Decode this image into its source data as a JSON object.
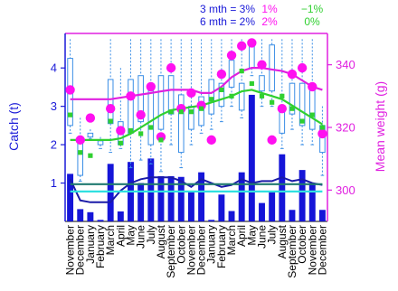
{
  "chart_data": {
    "type": "bar",
    "title": "",
    "ylabel": "Catch (t)",
    "y2label": "Mean weight (g)",
    "ylim": [
      0,
      4.9
    ],
    "y2lim": [
      290,
      350
    ],
    "yticks": [
      1,
      2,
      3,
      4
    ],
    "y2ticks": [
      300,
      320,
      340
    ],
    "grid": false,
    "categories": [
      "November",
      "December",
      "January",
      "February",
      "March",
      "April",
      "May",
      "June",
      "July",
      "August",
      "September",
      "October",
      "November",
      "December",
      "January",
      "February",
      "March",
      "April",
      "May",
      "June",
      "July",
      "August",
      "September",
      "October",
      "November",
      "December"
    ],
    "legend": {
      "rows": [
        {
          "label": "3 mth = 3%",
          "pct_magenta": "1%",
          "pct_green": "−1%"
        },
        {
          "label": "6 mth = 2%",
          "pct_magenta": "2%",
          "pct_green": "0%"
        }
      ]
    },
    "colors": {
      "bar": "#1515d8",
      "box": "#3a8ee6",
      "whisker": "#3a8ee6",
      "mean_weight_points": "#ff10f0",
      "mean_weight_smooth": "#e020e0",
      "green_points": "#30d030",
      "green_smooth": "#30d030",
      "navy_line": "#1a1aa8",
      "teal_line": "#207a70",
      "cyan_line": "#30e0e0",
      "left_axis": "#1a1ad8",
      "right_axis": "#e020e0"
    },
    "series": [
      {
        "kind": "bar",
        "axis": "left",
        "values": [
          1.24,
          0.32,
          0.24,
          0.04,
          1.5,
          0.26,
          1.55,
          1.0,
          1.64,
          1.18,
          1.18,
          1.16,
          0.78,
          1.28,
          0.04,
          0.7,
          0.27,
          1.28,
          3.3,
          0.48,
          0.78,
          1.75,
          0.3,
          1.34,
          0.98,
          0.3
        ]
      },
      {
        "kind": "box",
        "axis": "left",
        "values": [
          {
            "low": 2.3,
            "q1": 2.5,
            "q3": 4.25,
            "high": 4.75
          },
          {
            "low": 1.05,
            "q1": 1.2,
            "q3": 2.05,
            "high": 2.7
          },
          {
            "low": 2.15,
            "q1": 2.2,
            "q3": 2.3,
            "high": 2.4
          },
          {
            "low": 1.9,
            "q1": 2.0,
            "q3": 2.1,
            "high": 2.2
          },
          {
            "low": 1.8,
            "q1": 2.55,
            "q3": 3.7,
            "high": 4.75
          },
          {
            "low": 1.9,
            "q1": 2.0,
            "q3": 2.6,
            "high": 4.0
          },
          {
            "low": 1.4,
            "q1": 2.3,
            "q3": 3.7,
            "high": 4.75
          },
          {
            "low": 1.6,
            "q1": 2.6,
            "q3": 3.8,
            "high": 4.75
          },
          {
            "low": 1.5,
            "q1": 2.0,
            "q3": 3.4,
            "high": 4.75
          },
          {
            "low": 1.3,
            "q1": 2.4,
            "q3": 3.8,
            "high": 4.75
          },
          {
            "low": 2.0,
            "q1": 2.8,
            "q3": 3.8,
            "high": 4.75
          },
          {
            "low": 1.4,
            "q1": 1.8,
            "q3": 3.3,
            "high": 4.75
          },
          {
            "low": 2.0,
            "q1": 2.4,
            "q3": 3.0,
            "high": 4.75
          },
          {
            "low": 2.3,
            "q1": 2.5,
            "q3": 3.25,
            "high": 4.75
          },
          {
            "low": 2.4,
            "q1": 2.8,
            "q3": 3.7,
            "high": 4.75
          },
          {
            "low": 2.6,
            "q1": 3.0,
            "q3": 3.6,
            "high": 4.75
          },
          {
            "low": 3.0,
            "q1": 3.5,
            "q3": 4.2,
            "high": 4.75
          },
          {
            "low": 2.7,
            "q1": 2.9,
            "q3": 3.6,
            "high": 4.75
          },
          {
            "low": 3.8,
            "q1": 4.0,
            "q3": 4.6,
            "high": 4.75
          },
          {
            "low": 3.0,
            "q1": 3.4,
            "q3": 3.8,
            "high": 4.75
          },
          {
            "low": 3.0,
            "q1": 3.4,
            "q3": 4.6,
            "high": 4.75
          },
          {
            "low": 1.9,
            "q1": 2.3,
            "q3": 3.0,
            "high": 4.75
          },
          {
            "low": 2.4,
            "q1": 2.8,
            "q3": 3.6,
            "high": 4.75
          },
          {
            "low": 2.0,
            "q1": 2.5,
            "q3": 3.6,
            "high": 4.75
          },
          {
            "low": 2.0,
            "q1": 2.4,
            "q3": 3.5,
            "high": 4.75
          },
          {
            "low": 1.2,
            "q1": 1.8,
            "q3": 2.5,
            "high": 3.0
          }
        ]
      },
      {
        "kind": "points",
        "axis": "right",
        "color_key": "mean_weight_points",
        "values": [
          332,
          316,
          323,
          null,
          326,
          319,
          330,
          324,
          333,
          317,
          339,
          326,
          331,
          327,
          316,
          337,
          343,
          346,
          347,
          340,
          316,
          326,
          337,
          339,
          333,
          318
        ]
      },
      {
        "kind": "points",
        "axis": "right",
        "color_key": "green_points",
        "values": [
          324,
          312,
          311,
          null,
          322,
          315,
          319,
          318,
          320,
          316,
          325,
          325,
          325,
          326,
          329,
          332,
          330,
          338,
          334,
          330,
          328,
          330,
          326,
          322,
          324,
          320
        ]
      },
      {
        "kind": "line",
        "axis": "right",
        "color_key": "mean_weight_smooth",
        "values": [
          329,
          329,
          329,
          329,
          329,
          329.5,
          330,
          330.5,
          331,
          331.5,
          332,
          332,
          332,
          331,
          331,
          333,
          336,
          338,
          339,
          339,
          338.5,
          338,
          337,
          335,
          333,
          332
        ]
      },
      {
        "kind": "line",
        "axis": "right",
        "color_key": "green_smooth",
        "values": [
          316,
          316,
          316,
          316,
          316,
          316.5,
          318,
          320,
          322,
          324,
          325.5,
          326,
          326.5,
          327,
          328,
          329,
          330,
          331.5,
          332,
          331,
          330,
          329,
          327,
          325,
          323,
          321
        ]
      },
      {
        "kind": "line",
        "axis": "left",
        "color_key": "navy_line",
        "values": [
          1.1,
          0.55,
          0.5,
          0.5,
          0.5,
          0.8,
          1.0,
          1.1,
          1.15,
          1.15,
          1.15,
          1.05,
          0.9,
          1.1,
          1.0,
          0.9,
          0.95,
          1.1,
          1.0,
          1.05,
          1.05,
          1.15,
          1.05,
          1.1,
          1.0,
          0.95
        ]
      },
      {
        "kind": "line",
        "axis": "left",
        "color_key": "teal_line",
        "values": [
          0.97,
          0.97,
          0.97,
          0.97,
          0.97,
          0.97,
          0.97,
          0.97,
          0.97,
          0.97,
          0.97,
          0.97,
          0.97,
          0.97,
          0.97,
          0.97,
          0.97,
          0.97,
          0.97,
          0.97,
          0.97,
          0.97,
          0.97,
          0.97,
          0.97,
          0.97
        ]
      },
      {
        "kind": "line",
        "axis": "left",
        "color_key": "cyan_line",
        "values": [
          0.78,
          0.78,
          0.78,
          0.78,
          0.78,
          0.78,
          0.78,
          0.78,
          0.78,
          0.78,
          0.78,
          0.78,
          0.78,
          0.78,
          0.78,
          0.78,
          0.78,
          0.78,
          0.78,
          0.78,
          0.78,
          0.78,
          0.78,
          0.78,
          0.78,
          0.78
        ]
      }
    ]
  }
}
